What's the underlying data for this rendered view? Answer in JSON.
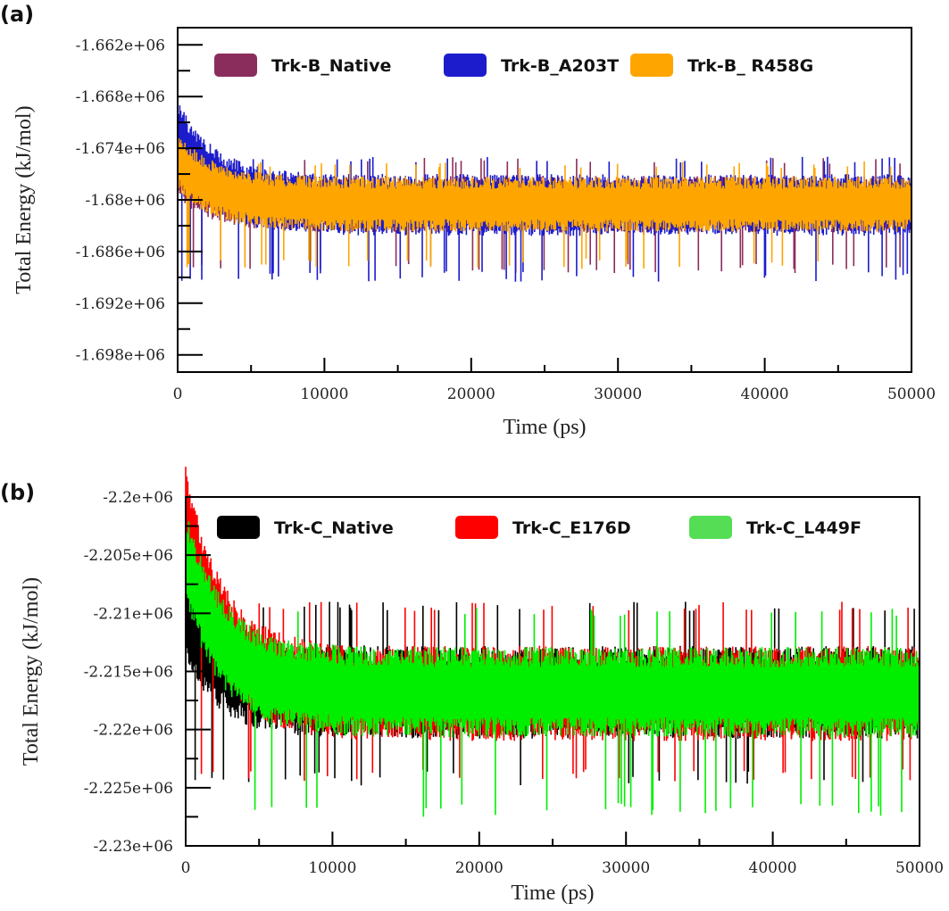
{
  "chart_data": [
    {
      "type": "line",
      "panel_label": "(a)",
      "title": "",
      "xlabel": "Time (ps)",
      "ylabel": "Total Energy (kJ/mol)",
      "xlim": [
        0,
        50000
      ],
      "ylim": [
        -1700000,
        -1660000
      ],
      "xticks": [
        0,
        10000,
        20000,
        30000,
        40000,
        50000
      ],
      "xtick_labels": [
        "0",
        "10000",
        "20000",
        "30000",
        "40000",
        "50000"
      ],
      "yticks": [
        -1662000,
        -1668000,
        -1674000,
        -1680000,
        -1686000,
        -1692000,
        -1698000
      ],
      "ytick_labels": [
        "-1.662e+06",
        "-1.668e+06",
        "-1.674e+06",
        "-1.68e+06",
        "-1.686e+06",
        "-1.692e+06",
        "-1.698e+06"
      ],
      "legend_position": "top",
      "series": [
        {
          "name": "Trk-B_Native",
          "color": "#8b2d5c",
          "start": -1676500,
          "mean": -1680500,
          "band": 3300,
          "max": -1675000,
          "min": -1688500
        },
        {
          "name": "Trk-B_A203T",
          "color": "#1c1ccc",
          "start": -1672000,
          "mean": -1680600,
          "band": 3600,
          "max": -1675000,
          "min": -1689500
        },
        {
          "name": "Trk-B_ R458G",
          "color": "#ffa500",
          "start": -1675500,
          "mean": -1680500,
          "band": 3200,
          "max": -1675500,
          "min": -1688000
        }
      ]
    },
    {
      "type": "line",
      "panel_label": "(b)",
      "title": "",
      "xlabel": "Time (ps)",
      "ylabel": "Total Energy (kJ/mol)",
      "xlim": [
        0,
        50000
      ],
      "ylim": [
        -2230000,
        -2200000
      ],
      "xticks": [
        0,
        10000,
        20000,
        30000,
        40000,
        50000
      ],
      "xtick_labels": [
        "0",
        "10000",
        "20000",
        "30000",
        "40000",
        "50000"
      ],
      "yticks": [
        -2200000,
        -2205000,
        -2210000,
        -2215000,
        -2220000,
        -2225000,
        -2230000
      ],
      "ytick_labels": [
        "-2.2e+06",
        "-2.205e+06",
        "-2.21e+06",
        "-2.215e+06",
        "-2.22e+06",
        "-2.225e+06",
        "-2.23e+06"
      ],
      "legend_position": "top",
      "series": [
        {
          "name": "Trk-C_Native",
          "color": "#000000",
          "start": -2210500,
          "mean": -2216800,
          "band": 4000,
          "max": -2209000,
          "min": -2224800
        },
        {
          "name": "Trk-C_E176D",
          "color": "#ff0000",
          "start": -2201500,
          "mean": -2216900,
          "band": 4100,
          "max": -2209000,
          "min": -2224500
        },
        {
          "name": "Trk-C_L449F",
          "color": "#00ee00",
          "start": -2205000,
          "mean": -2216800,
          "band": 3900,
          "max": -2209500,
          "min": -2227500
        }
      ]
    }
  ]
}
